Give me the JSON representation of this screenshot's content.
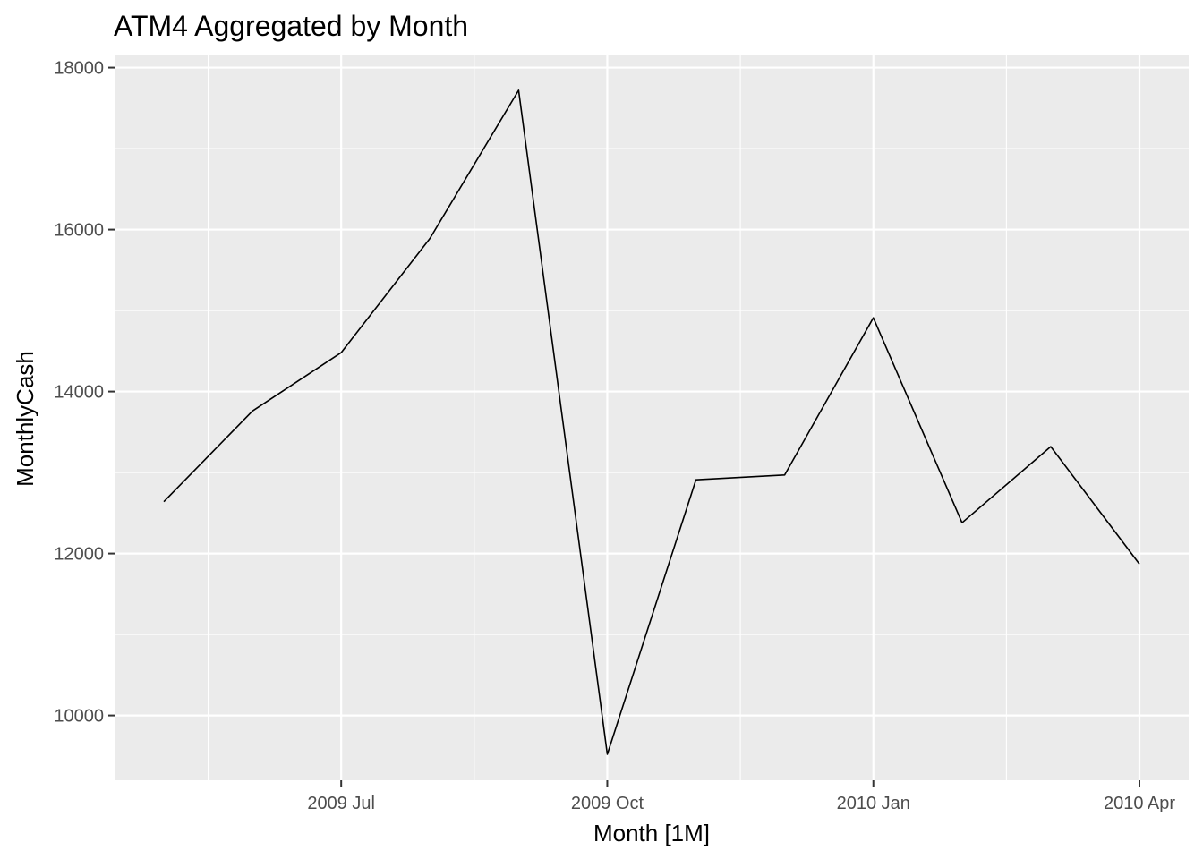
{
  "chart_data": {
    "type": "line",
    "title": "ATM4 Aggregated by Month",
    "xlabel": "Month [1M]",
    "ylabel": "MonthlyCash",
    "x": [
      "2009 May",
      "2009 Jun",
      "2009 Jul",
      "2009 Aug",
      "2009 Sep",
      "2009 Oct",
      "2009 Nov",
      "2009 Dec",
      "2010 Jan",
      "2010 Feb",
      "2010 Mar",
      "2010 Apr"
    ],
    "values": [
      12640,
      13760,
      14480,
      15890,
      17720,
      9520,
      12910,
      12970,
      14910,
      12380,
      13320,
      11870
    ],
    "x_ticks": [
      "2009 Jul",
      "2009 Oct",
      "2010 Jan",
      "2010 Apr"
    ],
    "y_ticks": [
      10000,
      12000,
      14000,
      16000,
      18000
    ],
    "ylim": [
      9200,
      18150
    ],
    "grid": true,
    "panel_color": "#ebebeb",
    "line_color": "#000000"
  }
}
